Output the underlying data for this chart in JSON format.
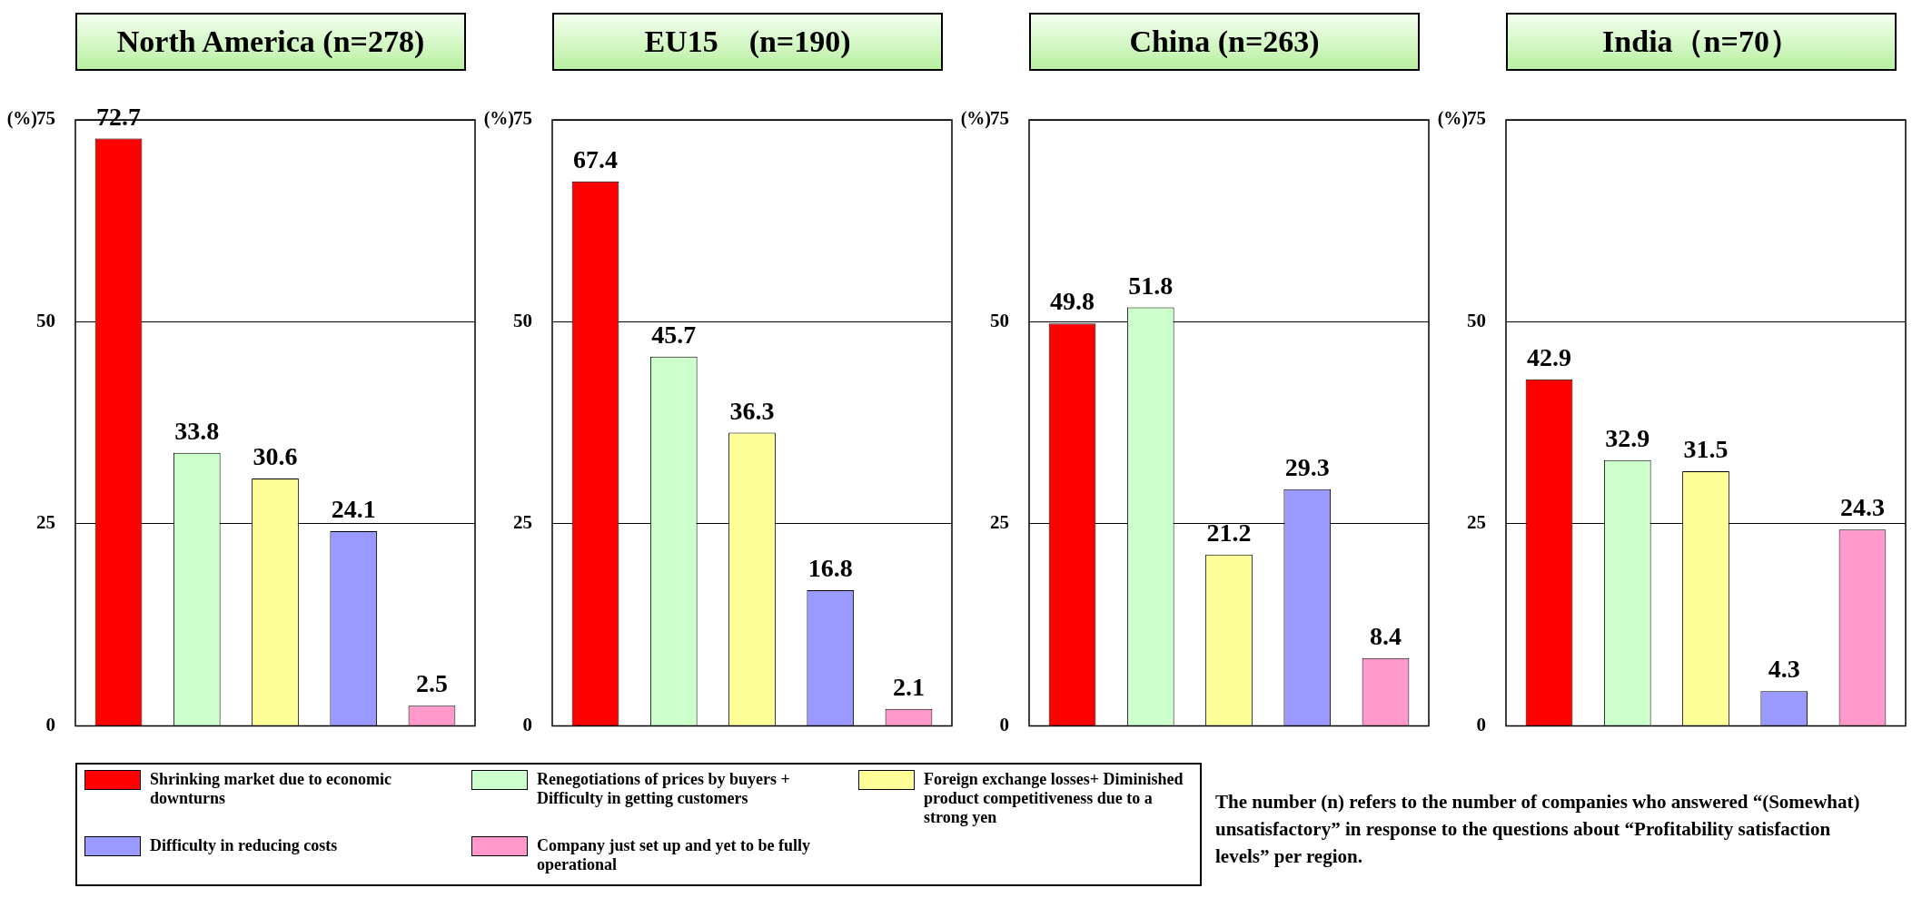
{
  "chart_data": [
    {
      "type": "bar",
      "title": "North America (n=278)",
      "ylabel": "(%)",
      "categories": [
        null
      ],
      "ylim": [
        0,
        75
      ],
      "yticks": [
        0,
        25,
        50,
        75
      ],
      "grid": "y",
      "tick_labels": "y",
      "data_labels": true,
      "legend": "bottom",
      "series": [
        {
          "name": "Shrinking market due to economic downturns",
          "color": "#ff0000",
          "values": [
            72.7
          ]
        },
        {
          "name": "Renegotiations of prices by buyers + Difficulty in getting customers",
          "color": "#ccffcc",
          "values": [
            33.8
          ]
        },
        {
          "name": "Foreign exchange losses+ Diminished product competitiveness due to a strong yen",
          "color": "#ffff99",
          "values": [
            30.6
          ]
        },
        {
          "name": "Difficulty in reducing costs",
          "color": "#9999ff",
          "values": [
            24.1
          ]
        },
        {
          "name": "Company just set up and yet to be fully operational",
          "color": "#ff99cc",
          "values": [
            2.5
          ]
        }
      ]
    },
    {
      "type": "bar",
      "title": "EU15　(n=190)",
      "ylabel": "(%)",
      "categories": [
        null
      ],
      "ylim": [
        0,
        75
      ],
      "yticks": [
        0,
        25,
        50,
        75
      ],
      "grid": "y",
      "tick_labels": "y",
      "data_labels": true,
      "series": [
        {
          "color": "#ff0000",
          "values": [
            67.4
          ]
        },
        {
          "color": "#ccffcc",
          "values": [
            45.7
          ]
        },
        {
          "color": "#ffff99",
          "values": [
            36.3
          ]
        },
        {
          "color": "#9999ff",
          "values": [
            16.8
          ]
        },
        {
          "color": "#ff99cc",
          "values": [
            2.1
          ]
        }
      ]
    },
    {
      "type": "bar",
      "title": "China (n=263)",
      "ylabel": "(%)",
      "categories": [
        null
      ],
      "ylim": [
        0,
        75
      ],
      "yticks": [
        0,
        25,
        50,
        75
      ],
      "grid": "y",
      "tick_labels": "y",
      "data_labels": true,
      "series": [
        {
          "color": "#ff0000",
          "values": [
            49.8
          ]
        },
        {
          "color": "#ccffcc",
          "values": [
            51.8
          ]
        },
        {
          "color": "#ffff99",
          "values": [
            21.2
          ]
        },
        {
          "color": "#9999ff",
          "values": [
            29.3
          ]
        },
        {
          "color": "#ff99cc",
          "values": [
            8.4
          ]
        }
      ]
    },
    {
      "type": "bar",
      "title": "India（n=70）",
      "ylabel": "(%)",
      "categories": [
        null
      ],
      "ylim": [
        0,
        75
      ],
      "yticks": [
        0,
        25,
        50,
        75
      ],
      "grid": "y",
      "tick_labels": "y",
      "data_labels": true,
      "annotations": [
        "The number (n) refers to the number of companies who answered “(Somewhat) unsatisfactory” in response to the questions about “Profitability satisfaction levels” per region."
      ],
      "series": [
        {
          "color": "#ff0000",
          "values": [
            42.9
          ]
        },
        {
          "color": "#ccffcc",
          "values": [
            32.9
          ]
        },
        {
          "color": "#ffff99",
          "values": [
            31.5
          ]
        },
        {
          "color": "#9999ff",
          "values": [
            4.3
          ]
        },
        {
          "color": "#ff99cc",
          "values": [
            24.3
          ]
        }
      ]
    }
  ]
}
